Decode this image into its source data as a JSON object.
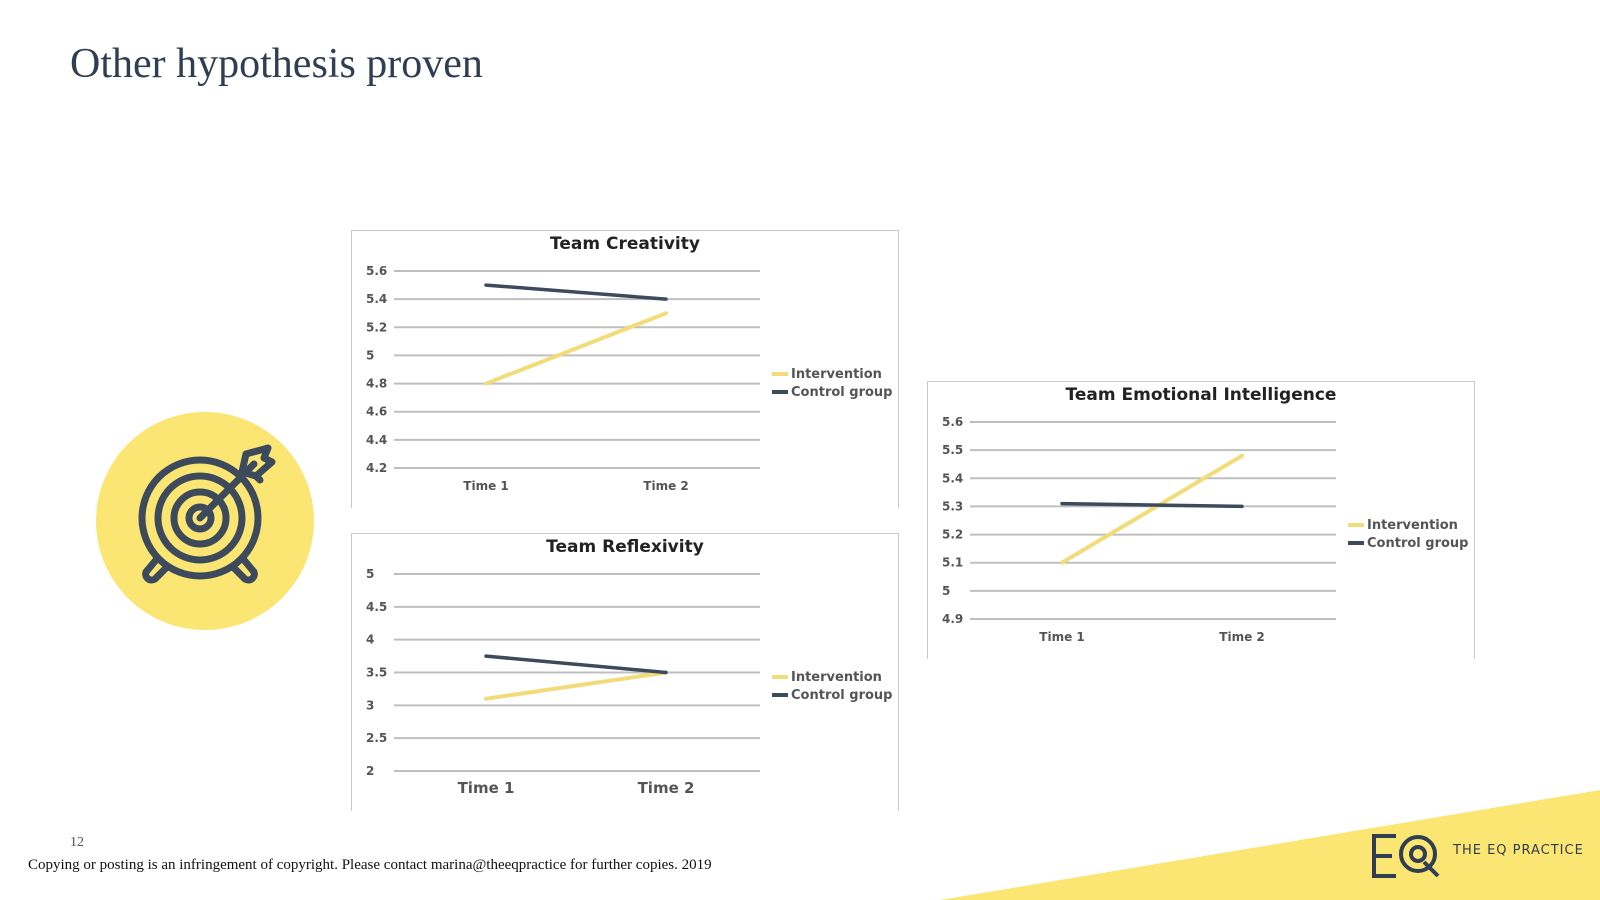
{
  "slide": {
    "title": "Other hypothesis proven",
    "page_number": "12",
    "copyright": "Copying or posting is an infringement of copyright. Please contact  marina@theeqpractice for further copies. 2019",
    "logo_text": "THE EQ PRACTICE",
    "logo_mark": "EQ"
  },
  "icons": {
    "target": "target-arrow-icon"
  },
  "colors": {
    "intervention": "#f2dc7a",
    "control": "#3d4a5c",
    "accent_yellow": "#fbe573",
    "title": "#2f3e52",
    "grid": "#bfbfbf"
  },
  "chart_data": [
    {
      "id": "creativity",
      "type": "line",
      "title": "Team Creativity",
      "categories": [
        "Time 1",
        "Time 2"
      ],
      "ylim": [
        4.2,
        5.6
      ],
      "yticks": [
        "5.6",
        "5.4",
        "5.2",
        "5",
        "4.8",
        "4.6",
        "4.4",
        "4.2"
      ],
      "series": [
        {
          "name": "Intervention",
          "values": [
            4.8,
            5.3
          ]
        },
        {
          "name": "Control group",
          "values": [
            5.5,
            5.4
          ]
        }
      ],
      "grid": true,
      "legend": "right"
    },
    {
      "id": "reflexivity",
      "type": "line",
      "title": "Team Reflexivity",
      "categories": [
        "Time 1",
        "Time 2"
      ],
      "ylim": [
        2,
        5
      ],
      "yticks": [
        "5",
        "4.5",
        "4",
        "3.5",
        "3",
        "2.5",
        "2"
      ],
      "series": [
        {
          "name": "Intervention",
          "values": [
            3.1,
            3.5
          ]
        },
        {
          "name": "Control group",
          "values": [
            3.75,
            3.5
          ]
        }
      ],
      "grid": true,
      "legend": "right"
    },
    {
      "id": "emotional",
      "type": "line",
      "title": "Team Emotional Intelligence",
      "categories": [
        "Time 1",
        "Time 2"
      ],
      "ylim": [
        4.9,
        5.6
      ],
      "yticks": [
        "5.6",
        "5.5",
        "5.4",
        "5.3",
        "5.2",
        "5.1",
        "5",
        "4.9"
      ],
      "series": [
        {
          "name": "Intervention",
          "values": [
            5.1,
            5.48
          ]
        },
        {
          "name": "Control group",
          "values": [
            5.31,
            5.3
          ]
        }
      ],
      "grid": true,
      "legend": "right"
    }
  ]
}
